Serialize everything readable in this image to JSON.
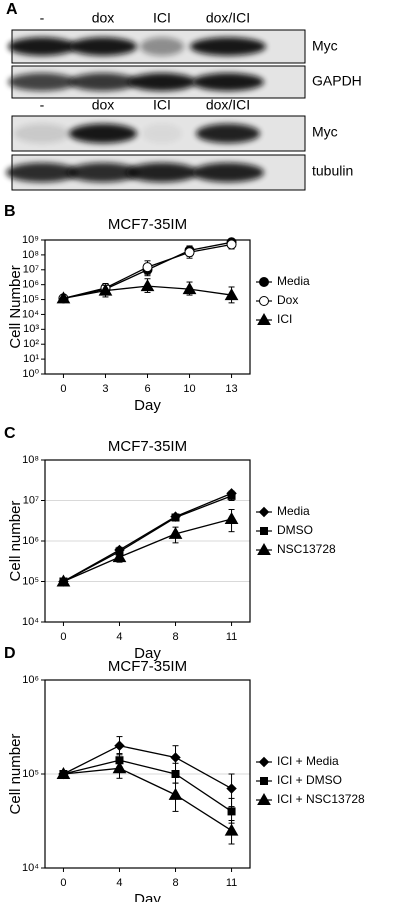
{
  "blot": {
    "panel": "A",
    "top_lanes": [
      "-",
      "dox",
      "ICI",
      "dox/ICI"
    ],
    "top_rows": [
      "Myc",
      "GAPDH"
    ],
    "bottom_lanes": [
      "-",
      "dox",
      "ICI",
      "dox/ICI"
    ],
    "bottom_rows": [
      "Myc",
      "tubulin"
    ]
  },
  "chart_data": [
    {
      "type": "line",
      "panel": "B",
      "title": "MCF7-35IM",
      "xlabel": "Day",
      "ylabel": "Cell Number",
      "categories": [
        "0",
        "3",
        "6",
        "10",
        "13"
      ],
      "yscale": "log",
      "grid": false,
      "ylim": [
        1,
        1000000000
      ],
      "yticks": [
        {
          "value": 1,
          "label": "10⁰"
        },
        {
          "value": 10,
          "label": "10¹"
        },
        {
          "value": 100,
          "label": "10²"
        },
        {
          "value": 1000,
          "label": "10³"
        },
        {
          "value": 10000,
          "label": "10⁴"
        },
        {
          "value": 100000,
          "label": "10⁵"
        },
        {
          "value": 1000000,
          "label": "10⁶"
        },
        {
          "value": 10000000,
          "label": "10⁷"
        },
        {
          "value": 100000000,
          "label": "10⁸"
        },
        {
          "value": 1000000000,
          "label": "10⁹"
        }
      ],
      "series": [
        {
          "name": "Media",
          "color": "#000000",
          "marker": "circle",
          "values": [
            120000,
            500000,
            10000000,
            200000000,
            700000000
          ],
          "errors": [
            [
              100000,
              150000
            ],
            [
              250000,
              1000000
            ],
            [
              4000000,
              25000000
            ],
            [
              80000000,
              400000000
            ],
            [
              400000000,
              1000000000
            ]
          ]
        },
        {
          "name": "Dox",
          "color": "#000000",
          "marker": "open-circle",
          "values": [
            120000,
            600000,
            15000000,
            150000000,
            500000000
          ],
          "errors": [
            [
              100000,
              150000
            ],
            [
              300000,
              1200000
            ],
            [
              5000000,
              40000000
            ],
            [
              60000000,
              300000000
            ],
            [
              250000000,
              800000000
            ]
          ]
        },
        {
          "name": "ICI",
          "color": "#000000",
          "marker": "triangle",
          "values": [
            120000,
            400000,
            800000,
            500000,
            200000
          ],
          "errors": [
            [
              100000,
              150000
            ],
            [
              150000,
              900000
            ],
            [
              300000,
              2500000
            ],
            [
              200000,
              1500000
            ],
            [
              60000,
              700000
            ]
          ]
        }
      ]
    },
    {
      "type": "line",
      "panel": "C",
      "title": "MCF7-35IM",
      "xlabel": "Day",
      "ylabel": "Cell number",
      "categories": [
        "0",
        "4",
        "8",
        "11"
      ],
      "yscale": "log",
      "grid": true,
      "ylim": [
        10000,
        100000000
      ],
      "yticks": [
        {
          "value": 10000,
          "label": "10⁴"
        },
        {
          "value": 100000,
          "label": "10⁵"
        },
        {
          "value": 1000000,
          "label": "10⁶"
        },
        {
          "value": 10000000,
          "label": "10⁷"
        },
        {
          "value": 100000000,
          "label": "10⁸"
        }
      ],
      "series": [
        {
          "name": "Media",
          "color": "#000000",
          "marker": "diamond",
          "values": [
            100000,
            600000,
            4000000,
            15000000
          ],
          "errors": [
            [
              95000,
              105000
            ],
            [
              500000,
              700000
            ],
            [
              3500000,
              4500000
            ],
            [
              12000000,
              17000000
            ]
          ]
        },
        {
          "name": "DMSO",
          "color": "#000000",
          "marker": "square",
          "values": [
            100000,
            550000,
            3800000,
            13000000
          ],
          "errors": [
            [
              95000,
              105000
            ],
            [
              450000,
              650000
            ],
            [
              3300000,
              4300000
            ],
            [
              10000000,
              16000000
            ]
          ]
        },
        {
          "name": "NSC13728",
          "color": "#000000",
          "marker": "triangle",
          "values": [
            100000,
            400000,
            1500000,
            3500000
          ],
          "errors": [
            [
              95000,
              105000
            ],
            [
              300000,
              500000
            ],
            [
              900000,
              2200000
            ],
            [
              1700000,
              6000000
            ]
          ]
        }
      ]
    },
    {
      "type": "line",
      "panel": "D",
      "title": "MCF7-35IM",
      "xlabel": "Day",
      "ylabel": "Cell number",
      "categories": [
        "0",
        "4",
        "8",
        "11"
      ],
      "yscale": "log",
      "grid": true,
      "ylim": [
        10000,
        1000000
      ],
      "yticks": [
        {
          "value": 10000,
          "label": "10⁴"
        },
        {
          "value": 100000,
          "label": "10⁵"
        },
        {
          "value": 1000000,
          "label": "10⁶"
        }
      ],
      "series": [
        {
          "name": "ICI + Media",
          "color": "#000000",
          "marker": "diamond",
          "values": [
            100000,
            200000,
            150000,
            70000
          ],
          "errors": [
            [
              97000,
              103000
            ],
            [
              160000,
              250000
            ],
            [
              100000,
              200000
            ],
            [
              45000,
              100000
            ]
          ]
        },
        {
          "name": "ICI + DMSO",
          "color": "#000000",
          "marker": "square",
          "values": [
            100000,
            140000,
            100000,
            40000
          ],
          "errors": [
            [
              97000,
              103000
            ],
            [
              120000,
              165000
            ],
            [
              80000,
              130000
            ],
            [
              30000,
              55000
            ]
          ]
        },
        {
          "name": "ICI + NSC13728",
          "color": "#000000",
          "marker": "triangle",
          "values": [
            100000,
            115000,
            60000,
            25000
          ],
          "errors": [
            [
              97000,
              103000
            ],
            [
              90000,
              140000
            ],
            [
              40000,
              80000
            ],
            [
              18000,
              32000
            ]
          ]
        }
      ]
    }
  ]
}
